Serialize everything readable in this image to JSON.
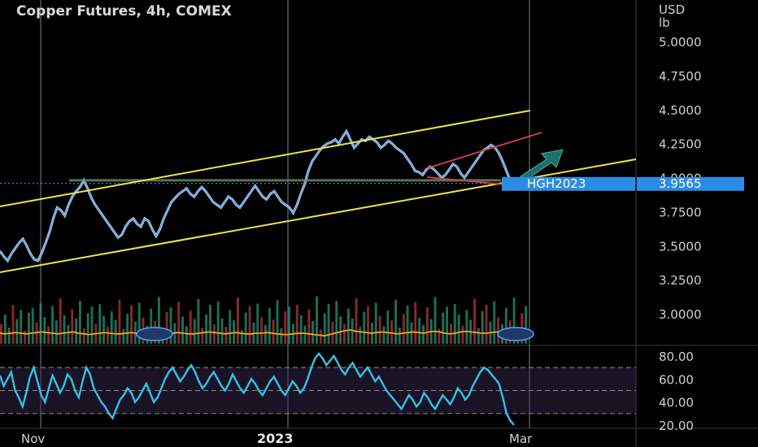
{
  "chart_data": [
    {
      "type": "line",
      "title": "Copper Futures, 4h, COMEX",
      "unit_lines": [
        "USD",
        "lb"
      ],
      "ylim": [
        2.85,
        5.1
      ],
      "yticks": [
        "5.0000",
        "4.7500",
        "4.5000",
        "4.2500",
        "4.0000",
        "3.7500",
        "3.5000",
        "3.2500",
        "3.0000"
      ],
      "ytick_values": [
        5.0,
        4.75,
        4.5,
        4.25,
        4.0,
        3.75,
        3.5,
        3.25,
        3.0
      ],
      "xticks": [
        "Nov",
        "2023",
        "Mar"
      ],
      "grid": true,
      "price_tag": "3.9565",
      "price_tag_value": 3.9565,
      "symbol_tag": "HGH2023",
      "series": [
        {
          "color": "#4da6ff",
          "values": [
            3.46,
            3.42,
            3.39,
            3.44,
            3.48,
            3.52,
            3.55,
            3.5,
            3.44,
            3.4,
            3.39,
            3.45,
            3.52,
            3.6,
            3.7,
            3.78,
            3.76,
            3.72,
            3.8,
            3.86,
            3.9,
            3.93,
            3.98,
            3.92,
            3.85,
            3.8,
            3.76,
            3.72,
            3.68,
            3.64,
            3.6,
            3.56,
            3.58,
            3.64,
            3.68,
            3.7,
            3.66,
            3.64,
            3.7,
            3.68,
            3.62,
            3.57,
            3.62,
            3.7,
            3.76,
            3.82,
            3.85,
            3.88,
            3.9,
            3.92,
            3.88,
            3.86,
            3.9,
            3.93,
            3.9,
            3.86,
            3.82,
            3.8,
            3.78,
            3.82,
            3.86,
            3.84,
            3.8,
            3.78,
            3.82,
            3.86,
            3.9,
            3.94,
            3.9,
            3.86,
            3.84,
            3.88,
            3.9,
            3.86,
            3.82,
            3.8,
            3.78,
            3.74,
            3.8,
            3.88,
            3.95,
            4.05,
            4.12,
            4.16,
            4.2,
            4.23,
            4.25,
            4.26,
            4.28,
            4.25,
            4.3,
            4.34,
            4.28,
            4.22,
            4.25,
            4.28,
            4.27,
            4.3,
            4.28,
            4.26,
            4.22,
            4.24,
            4.27,
            4.25,
            4.22,
            4.2,
            4.18,
            4.14,
            4.1,
            4.05,
            4.04,
            4.02,
            4.06,
            4.08,
            4.06,
            4.03,
            4.0,
            4.02,
            4.06,
            4.1,
            4.08,
            4.03,
            4.0,
            4.04,
            4.08,
            4.12,
            4.16,
            4.2,
            4.22,
            4.24,
            4.22,
            4.18,
            4.12,
            4.05,
            3.98,
            3.9565
          ]
        }
      ]
    },
    {
      "type": "bar",
      "name": "volume",
      "bar_colors": [
        "#2a9d7c",
        "#c23b3b"
      ],
      "line_color": "#ff9f1a",
      "values": [
        30,
        45,
        25,
        60,
        38,
        52,
        20,
        48,
        55,
        33,
        62,
        41,
        27,
        58,
        36,
        70,
        44,
        29,
        53,
        39,
        66,
        24,
        47,
        57,
        31,
        61,
        43,
        26,
        50,
        37,
        68,
        22,
        46,
        59,
        34,
        63,
        40,
        28,
        54,
        35,
        72,
        23,
        49,
        56,
        32,
        64,
        42,
        27,
        51,
        38,
        69,
        25,
        45,
        60,
        30,
        65,
        39,
        26,
        52,
        36,
        71,
        21,
        48,
        58,
        33,
        62,
        41,
        29,
        55,
        37,
        67,
        24,
        50,
        57,
        31,
        60,
        44,
        28,
        53,
        35,
        73,
        22,
        47,
        61,
        34,
        66,
        42,
        30,
        54,
        39,
        70,
        26,
        49,
        58,
        32,
        63,
        43,
        27,
        51,
        36,
        68,
        25,
        46,
        59,
        33,
        64,
        40,
        29,
        56,
        38,
        72,
        23,
        48,
        57,
        31,
        61,
        45,
        28,
        52,
        37,
        69,
        24,
        50,
        60,
        34,
        65,
        41,
        30,
        55,
        36,
        71,
        22,
        47,
        58
      ],
      "ma_values": [
        1.0,
        0.9,
        1.0,
        1.1,
        1.0,
        0.9,
        1.0,
        1.1,
        1.2,
        1.1,
        1.0,
        0.9,
        1.0,
        1.1,
        1.2,
        1.0,
        0.9,
        0.8,
        0.9,
        1.0,
        1.1,
        1.0,
        0.9,
        0.9,
        1.0,
        1.1,
        1.0,
        0.9,
        0.8,
        0.9,
        1.0,
        1.0,
        0.9,
        1.0,
        1.1,
        1.0,
        0.9,
        0.9,
        1.0,
        1.1,
        1.2,
        1.1,
        1.0,
        0.9,
        1.0,
        1.1,
        1.0,
        0.9,
        0.9,
        1.0,
        1.0,
        1.1,
        1.0,
        0.9,
        0.8,
        0.8,
        0.9,
        1.0,
        1.0,
        0.9,
        0.8,
        0.7,
        0.6,
        0.8,
        1.0,
        1.2,
        1.4,
        1.5,
        1.3,
        1.2,
        1.1,
        1.0,
        1.1,
        1.2,
        1.1,
        1.0,
        0.9,
        1.0,
        1.1,
        1.2,
        1.1,
        1.0,
        1.2,
        1.3,
        1.2,
        1.0,
        0.9,
        1.0,
        1.2,
        1.3,
        1.2,
        1.1,
        1.0,
        1.0,
        1.1,
        1.2,
        1.1,
        1.0,
        0.9,
        0.8,
        0.6,
        0.4
      ]
    },
    {
      "type": "line",
      "name": "oscillator",
      "color": "#33c3e6",
      "ylim": [
        18,
        85
      ],
      "yticks": [
        "80.00",
        "60.00",
        "40.00",
        "20.00"
      ],
      "ytick_values": [
        80,
        60,
        40,
        20
      ],
      "dashed_levels": [
        70,
        50,
        30
      ],
      "values": [
        63,
        54,
        60,
        66,
        50,
        44,
        36,
        48,
        62,
        70,
        58,
        46,
        40,
        52,
        63,
        56,
        48,
        54,
        64,
        60,
        50,
        44,
        58,
        70,
        64,
        52,
        46,
        40,
        36,
        30,
        26,
        34,
        42,
        46,
        52,
        48,
        40,
        44,
        50,
        56,
        48,
        40,
        44,
        52,
        60,
        66,
        70,
        64,
        58,
        62,
        68,
        72,
        66,
        58,
        52,
        56,
        62,
        66,
        60,
        54,
        50,
        56,
        64,
        58,
        52,
        48,
        54,
        60,
        56,
        50,
        46,
        52,
        58,
        62,
        56,
        50,
        46,
        52,
        58,
        54,
        48,
        52,
        60,
        70,
        78,
        82,
        78,
        72,
        76,
        80,
        74,
        68,
        64,
        70,
        74,
        68,
        62,
        66,
        70,
        64,
        58,
        62,
        56,
        50,
        46,
        42,
        38,
        34,
        40,
        46,
        42,
        36,
        40,
        48,
        44,
        38,
        34,
        40,
        46,
        42,
        38,
        44,
        52,
        48,
        42,
        46,
        54,
        60,
        66,
        70,
        68,
        64,
        60,
        56,
        44,
        30,
        24,
        20
      ]
    }
  ],
  "toolbar": {
    "arrow_icon": "double-chevron-icon"
  }
}
